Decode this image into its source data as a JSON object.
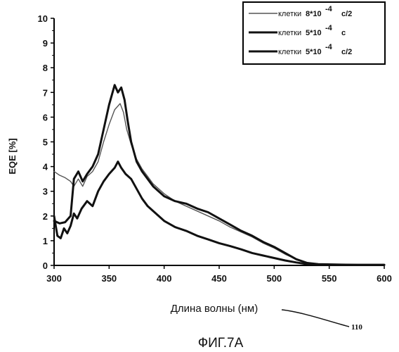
{
  "chart_data": {
    "type": "line",
    "ylabel": "EQE [%]",
    "xlabel": "Длина волны (нм)",
    "caption": "ФИГ.7А",
    "reference_numeral": "110",
    "xlim": [
      300,
      600
    ],
    "ylim": [
      0,
      10
    ],
    "x_ticks": [
      "300",
      "350",
      "400",
      "450",
      "500",
      "550",
      "600"
    ],
    "y_ticks": [
      "0",
      "1",
      "2",
      "3",
      "4",
      "5",
      "6",
      "7",
      "8",
      "9",
      "10"
    ],
    "grid": false,
    "legend_position": "top-right",
    "series": [
      {
        "legend_prefix": "клетки",
        "legend_value": "8*10",
        "legend_exp": "-4",
        "legend_suffix": "c/2",
        "color": "#555555",
        "style": "thin",
        "points": [
          [
            300,
            3.8
          ],
          [
            305,
            3.65
          ],
          [
            310,
            3.55
          ],
          [
            315,
            3.4
          ],
          [
            318,
            3.2
          ],
          [
            322,
            3.5
          ],
          [
            326,
            3.2
          ],
          [
            330,
            3.6
          ],
          [
            335,
            3.8
          ],
          [
            340,
            4.2
          ],
          [
            345,
            5.0
          ],
          [
            350,
            5.7
          ],
          [
            355,
            6.3
          ],
          [
            360,
            6.55
          ],
          [
            363,
            6.2
          ],
          [
            366,
            5.5
          ],
          [
            370,
            4.9
          ],
          [
            375,
            4.3
          ],
          [
            380,
            3.9
          ],
          [
            385,
            3.6
          ],
          [
            390,
            3.3
          ],
          [
            400,
            2.9
          ],
          [
            410,
            2.6
          ],
          [
            420,
            2.4
          ],
          [
            430,
            2.2
          ],
          [
            440,
            2.0
          ],
          [
            450,
            1.8
          ],
          [
            460,
            1.55
          ],
          [
            470,
            1.35
          ],
          [
            480,
            1.15
          ],
          [
            490,
            0.9
          ],
          [
            500,
            0.7
          ],
          [
            510,
            0.45
          ],
          [
            520,
            0.25
          ],
          [
            530,
            0.1
          ],
          [
            540,
            0.05
          ],
          [
            560,
            0.03
          ],
          [
            580,
            0.02
          ],
          [
            600,
            0.02
          ]
        ]
      },
      {
        "legend_prefix": "клетки",
        "legend_value": "5*10",
        "legend_exp": "-4",
        "legend_suffix": "c",
        "color": "#111111",
        "style": "thick",
        "points": [
          [
            300,
            2.0
          ],
          [
            303,
            1.2
          ],
          [
            306,
            1.1
          ],
          [
            309,
            1.5
          ],
          [
            312,
            1.3
          ],
          [
            315,
            1.6
          ],
          [
            318,
            2.1
          ],
          [
            321,
            1.9
          ],
          [
            325,
            2.3
          ],
          [
            330,
            2.6
          ],
          [
            335,
            2.4
          ],
          [
            340,
            3.0
          ],
          [
            345,
            3.4
          ],
          [
            350,
            3.7
          ],
          [
            355,
            3.95
          ],
          [
            358,
            4.2
          ],
          [
            361,
            3.95
          ],
          [
            365,
            3.7
          ],
          [
            370,
            3.5
          ],
          [
            375,
            3.1
          ],
          [
            380,
            2.7
          ],
          [
            385,
            2.4
          ],
          [
            390,
            2.2
          ],
          [
            400,
            1.8
          ],
          [
            410,
            1.55
          ],
          [
            420,
            1.4
          ],
          [
            430,
            1.2
          ],
          [
            440,
            1.05
          ],
          [
            450,
            0.9
          ],
          [
            460,
            0.78
          ],
          [
            470,
            0.65
          ],
          [
            480,
            0.5
          ],
          [
            490,
            0.4
          ],
          [
            500,
            0.3
          ],
          [
            510,
            0.2
          ],
          [
            520,
            0.12
          ],
          [
            530,
            0.05
          ],
          [
            540,
            0.02
          ],
          [
            560,
            0.02
          ],
          [
            580,
            0.02
          ],
          [
            600,
            0.02
          ]
        ]
      },
      {
        "legend_prefix": "клетки",
        "legend_value": "5*10",
        "legend_exp": "-4",
        "legend_suffix": "c/2",
        "color": "#111111",
        "style": "thick",
        "points": [
          [
            300,
            1.8
          ],
          [
            305,
            1.7
          ],
          [
            310,
            1.75
          ],
          [
            315,
            2.0
          ],
          [
            318,
            3.5
          ],
          [
            322,
            3.8
          ],
          [
            326,
            3.4
          ],
          [
            330,
            3.7
          ],
          [
            335,
            4.0
          ],
          [
            340,
            4.5
          ],
          [
            345,
            5.5
          ],
          [
            350,
            6.5
          ],
          [
            355,
            7.3
          ],
          [
            358,
            7.0
          ],
          [
            361,
            7.2
          ],
          [
            364,
            6.7
          ],
          [
            367,
            5.8
          ],
          [
            370,
            5.0
          ],
          [
            375,
            4.2
          ],
          [
            380,
            3.8
          ],
          [
            385,
            3.5
          ],
          [
            390,
            3.2
          ],
          [
            400,
            2.8
          ],
          [
            410,
            2.6
          ],
          [
            420,
            2.5
          ],
          [
            430,
            2.3
          ],
          [
            440,
            2.15
          ],
          [
            450,
            1.9
          ],
          [
            460,
            1.65
          ],
          [
            470,
            1.4
          ],
          [
            480,
            1.2
          ],
          [
            490,
            0.95
          ],
          [
            500,
            0.75
          ],
          [
            510,
            0.5
          ],
          [
            520,
            0.25
          ],
          [
            530,
            0.1
          ],
          [
            540,
            0.05
          ],
          [
            560,
            0.03
          ],
          [
            580,
            0.02
          ],
          [
            600,
            0.02
          ]
        ]
      }
    ]
  }
}
